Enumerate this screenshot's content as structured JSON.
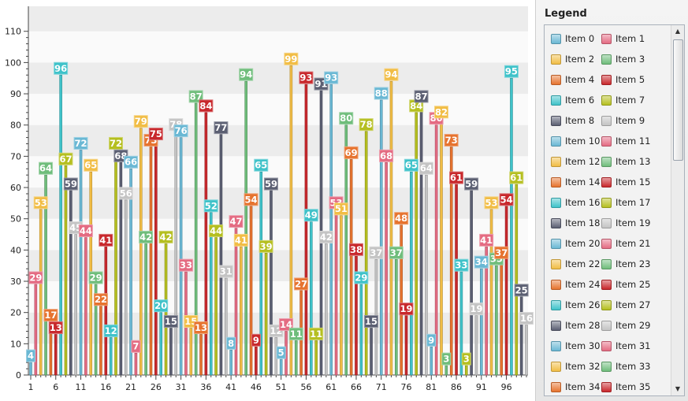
{
  "chart_data": {
    "type": "bar",
    "x": [
      1,
      2,
      3,
      4,
      5,
      6,
      7,
      8,
      9,
      10,
      11,
      12,
      13,
      14,
      15,
      16,
      17,
      18,
      19,
      20,
      21,
      22,
      23,
      24,
      25,
      26,
      27,
      28,
      29,
      30,
      31,
      32,
      33,
      34,
      35,
      36,
      37,
      38,
      39,
      40,
      41,
      42,
      43,
      44,
      45,
      46,
      47,
      48,
      49,
      50,
      51,
      52,
      53,
      54,
      55,
      56,
      57,
      58,
      59,
      60,
      61,
      62,
      63,
      64,
      65,
      66,
      67,
      68,
      69,
      70,
      71,
      72,
      73,
      74,
      75,
      76,
      77,
      78,
      79,
      80,
      81,
      82,
      83,
      84,
      85,
      86,
      87,
      88,
      89,
      90,
      91,
      92,
      93,
      94,
      95,
      96,
      97,
      98,
      99,
      100
    ],
    "values": [
      4,
      29,
      53,
      64,
      17,
      13,
      96,
      67,
      59,
      45,
      72,
      44,
      65,
      29,
      22,
      41,
      12,
      72,
      68,
      56,
      66,
      7,
      79,
      42,
      73,
      75,
      20,
      42,
      15,
      78,
      76,
      33,
      15,
      87,
      13,
      84,
      52,
      44,
      77,
      31,
      8,
      47,
      41,
      94,
      54,
      9,
      65,
      39,
      59,
      12,
      5,
      14,
      99,
      11,
      27,
      93,
      49,
      11,
      91,
      42,
      93,
      53,
      51,
      80,
      69,
      38,
      29,
      78,
      15,
      37,
      88,
      68,
      94,
      37,
      48,
      19,
      65,
      84,
      87,
      64,
      9,
      80,
      82,
      3,
      73,
      61,
      33,
      3,
      59,
      19,
      34,
      41,
      53,
      35,
      37,
      54,
      95,
      61,
      25,
      16
    ],
    "xlabel": "",
    "ylabel": "",
    "ylim": [
      0,
      118
    ],
    "yticks": [
      0,
      10,
      20,
      30,
      40,
      50,
      60,
      70,
      80,
      90,
      100,
      110
    ],
    "xticks": [
      1,
      6,
      11,
      16,
      21,
      26,
      31,
      36,
      41,
      46,
      51,
      56,
      61,
      66,
      71,
      76,
      81,
      86,
      91,
      96
    ],
    "legend_title": "Legend",
    "legend_labels": [
      "Item 0",
      "Item 1",
      "Item 2",
      "Item 3",
      "Item 4",
      "Item 5",
      "Item 6",
      "Item 7",
      "Item 8",
      "Item 9",
      "Item 10",
      "Item 11",
      "Item 12",
      "Item 13",
      "Item 14",
      "Item 15",
      "Item 16",
      "Item 17",
      "Item 18",
      "Item 19",
      "Item 20",
      "Item 21",
      "Item 22",
      "Item 23",
      "Item 24",
      "Item 25",
      "Item 26",
      "Item 27",
      "Item 28",
      "Item 29",
      "Item 30",
      "Item 31",
      "Item 32",
      "Item 33",
      "Item 34",
      "Item 35"
    ],
    "palette": [
      "#6ab8d4",
      "#e46b82",
      "#f1bd45",
      "#6fbd7b",
      "#e6732f",
      "#c8282c",
      "#3fc2c9",
      "#b5bf20",
      "#5b5f72",
      "#c4c4c4"
    ],
    "data_labels": true
  },
  "legend": {
    "title": "Legend"
  },
  "scrollbar": {
    "up_glyph": "▲",
    "down_glyph": "▼"
  }
}
